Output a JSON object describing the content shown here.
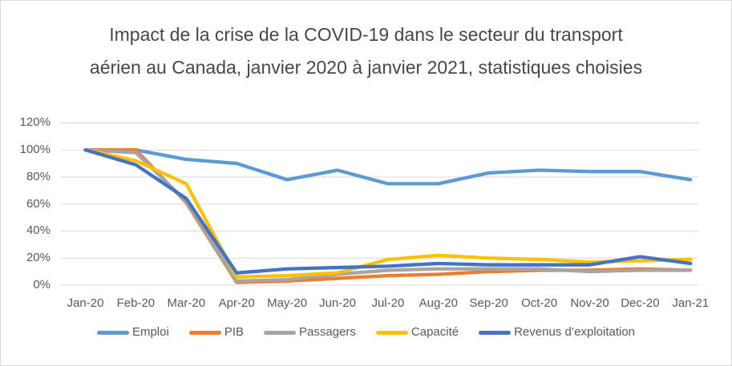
{
  "chart_data": {
    "type": "line",
    "title": "Impact de la crise de la COVID-19 dans le secteur du transport aérien au Canada, janvier 2020 à janvier 2021, statistiques choisies",
    "xlabel": "",
    "ylabel": "",
    "categories": [
      "Jan-20",
      "Feb-20",
      "Mar-20",
      "Apr-20",
      "May-20",
      "Jun-20",
      "Jul-20",
      "Aug-20",
      "Sep-20",
      "Oct-20",
      "Nov-20",
      "Dec-20",
      "Jan-21"
    ],
    "series": [
      {
        "name": "Emploi",
        "color": "#5b9bd5",
        "values": [
          100,
          100,
          93,
          90,
          78,
          85,
          75,
          75,
          83,
          85,
          84,
          84,
          78
        ]
      },
      {
        "name": "PIB",
        "color": "#ed7d31",
        "values": [
          100,
          100,
          61,
          2,
          3,
          5,
          7,
          8,
          10,
          11,
          11,
          12,
          11
        ]
      },
      {
        "name": "Passagers",
        "color": "#a5a5a5",
        "values": [
          100,
          98,
          62,
          3,
          4,
          8,
          11,
          12,
          12,
          12,
          10,
          11,
          11
        ]
      },
      {
        "name": "Capacité",
        "color": "#ffc000",
        "values": [
          100,
          92,
          75,
          6,
          7,
          9,
          19,
          22,
          20,
          19,
          17,
          18,
          19
        ]
      },
      {
        "name": "Revenus d’exploitation",
        "color": "#4472c4",
        "values": [
          100,
          89,
          64,
          9,
          12,
          13,
          14,
          16,
          15,
          15,
          15,
          21,
          16
        ]
      }
    ],
    "ylim": [
      0,
      120
    ],
    "ytick_values": [
      0,
      20,
      40,
      60,
      80,
      100,
      120
    ],
    "yticks": [
      "0%",
      "20%",
      "40%",
      "60%",
      "80%",
      "100%",
      "120%"
    ],
    "grid": true,
    "gridline_color": "#d9d9d9",
    "legend_position": "bottom"
  }
}
